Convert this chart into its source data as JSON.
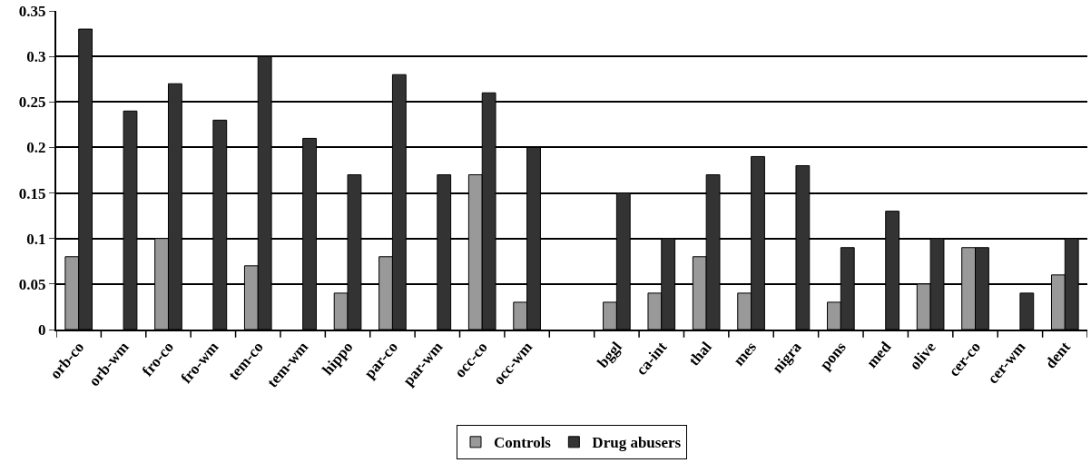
{
  "chart_data": {
    "type": "bar",
    "categories": [
      "orb-co",
      "orb-wm",
      "fro-co",
      "fro-wm",
      "tem-co",
      "tem-wm",
      "hippo",
      "par-co",
      "par-wm",
      "occ-co",
      "occ-wm",
      null,
      "bggl",
      "ca-int",
      "thal",
      "mes",
      "nigra",
      "pons",
      "med",
      "olive",
      "cer-co",
      "cer-wm",
      "dent"
    ],
    "series": [
      {
        "name": "Controls",
        "color": "#999999",
        "values": [
          0.08,
          null,
          0.1,
          null,
          0.07,
          null,
          0.04,
          0.08,
          null,
          0.17,
          0.03,
          null,
          0.03,
          0.04,
          0.08,
          0.04,
          null,
          0.03,
          null,
          0.05,
          0.09,
          null,
          0.06
        ]
      },
      {
        "name": "Drug abusers",
        "color": "#333333",
        "values": [
          0.33,
          0.24,
          0.27,
          0.23,
          0.3,
          0.21,
          0.17,
          0.28,
          0.17,
          0.26,
          0.2,
          null,
          0.15,
          0.1,
          0.17,
          0.19,
          0.18,
          0.09,
          0.13,
          0.1,
          0.09,
          0.04,
          0.1
        ]
      }
    ],
    "ylim": [
      0,
      0.35
    ],
    "yticks": [
      0,
      0.05,
      0.1,
      0.15,
      0.2,
      0.25,
      0.3,
      0.35
    ],
    "grid": "y",
    "legend": "bottom"
  }
}
